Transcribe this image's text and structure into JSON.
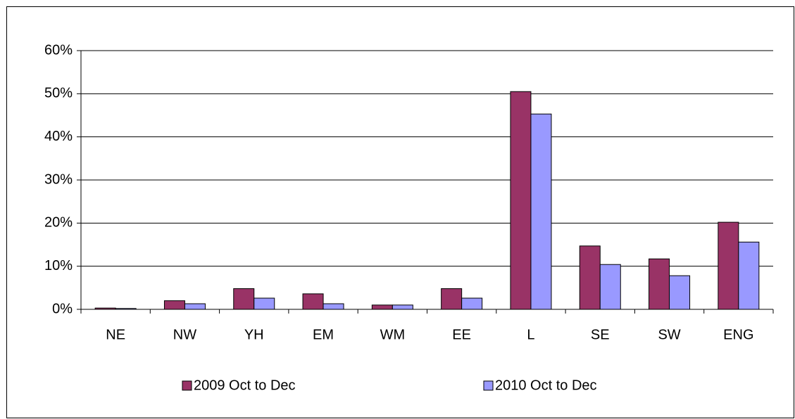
{
  "chart_data": {
    "type": "bar",
    "categories": [
      "NE",
      "NW",
      "YH",
      "EM",
      "WM",
      "EE",
      "L",
      "SE",
      "SW",
      "ENG"
    ],
    "series": [
      {
        "name": "2009 Oct to Dec",
        "color": "#993366",
        "values": [
          0.3,
          2.0,
          4.8,
          3.6,
          1.0,
          4.8,
          50.5,
          14.7,
          11.7,
          20.2
        ]
      },
      {
        "name": "2010 Oct to Dec",
        "color": "#9999ff",
        "values": [
          0.2,
          1.3,
          2.6,
          1.3,
          1.0,
          2.6,
          45.3,
          10.4,
          7.8,
          15.6
        ]
      }
    ],
    "ylim": [
      0,
      60
    ],
    "yticks": [
      {
        "value": 0,
        "label": "0%"
      },
      {
        "value": 10,
        "label": "10%"
      },
      {
        "value": 20,
        "label": "20%"
      },
      {
        "value": 30,
        "label": "30%"
      },
      {
        "value": 40,
        "label": "40%"
      },
      {
        "value": 50,
        "label": "50%"
      },
      {
        "value": 60,
        "label": "60%"
      }
    ],
    "grid": true,
    "legend": "bottom"
  }
}
